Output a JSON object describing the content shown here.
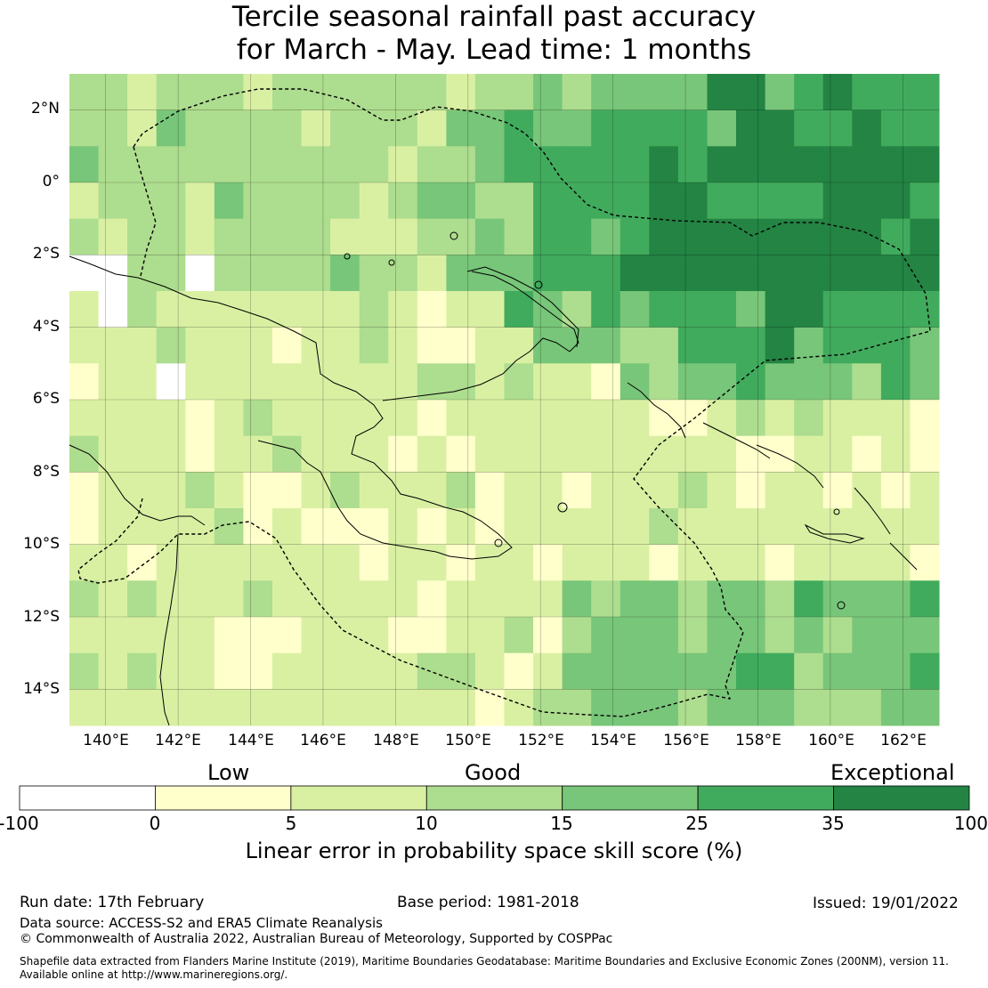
{
  "title": {
    "line1": "Tercile seasonal rainfall past accuracy",
    "line2": "for March - May. Lead time: 1 months"
  },
  "map": {
    "lat_labels": [
      "2°N",
      "0°",
      "2°S",
      "4°S",
      "6°S",
      "8°S",
      "10°S",
      "12°S",
      "14°S"
    ],
    "lon_labels": [
      "140°E",
      "142°E",
      "144°E",
      "146°E",
      "148°E",
      "150°E",
      "152°E",
      "154°E",
      "156°E",
      "158°E",
      "160°E",
      "162°E"
    ],
    "lat_range": [
      -15,
      3
    ],
    "lon_range": [
      139,
      163
    ],
    "grid_lines": true,
    "boundary_style": "dashed"
  },
  "legend": {
    "categories": [
      "Low",
      "Good",
      "Exceptional"
    ],
    "bins": [
      {
        "from": -100,
        "to": 0,
        "color": "#ffffff"
      },
      {
        "from": 0,
        "to": 5,
        "color": "#ffffcc"
      },
      {
        "from": 5,
        "to": 10,
        "color": "#d9f0a3"
      },
      {
        "from": 10,
        "to": 15,
        "color": "#addd8e"
      },
      {
        "from": 15,
        "to": 25,
        "color": "#78c679"
      },
      {
        "from": 25,
        "to": 35,
        "color": "#41ab5d"
      },
      {
        "from": 35,
        "to": 100,
        "color": "#238443"
      }
    ],
    "tick_labels": [
      "-100",
      "0",
      "5",
      "10",
      "15",
      "25",
      "35",
      "100"
    ],
    "title": "Linear error in probability space skill score (%)"
  },
  "footer": {
    "run_date": "Run date: 17th February",
    "base_period": "Base period: 1981-2018",
    "issued": "Issued: 19/01/2022",
    "data_source": "Data source: ACCESS-S2 and ERA5 Climate Reanalysis",
    "copyright": "© Commonwealth of Australia 2022, Australian Bureau of Meteorology, Supported by COSPPac",
    "shapefile_line1": "Shapefile data extracted from Flanders Marine Institute (2019), Maritime Boundaries Geodatabase: Maritime Boundaries and Exclusive Economic Zones (200NM), version 11.",
    "shapefile_line2": "Available online at http://www.marineregions.org/."
  }
}
